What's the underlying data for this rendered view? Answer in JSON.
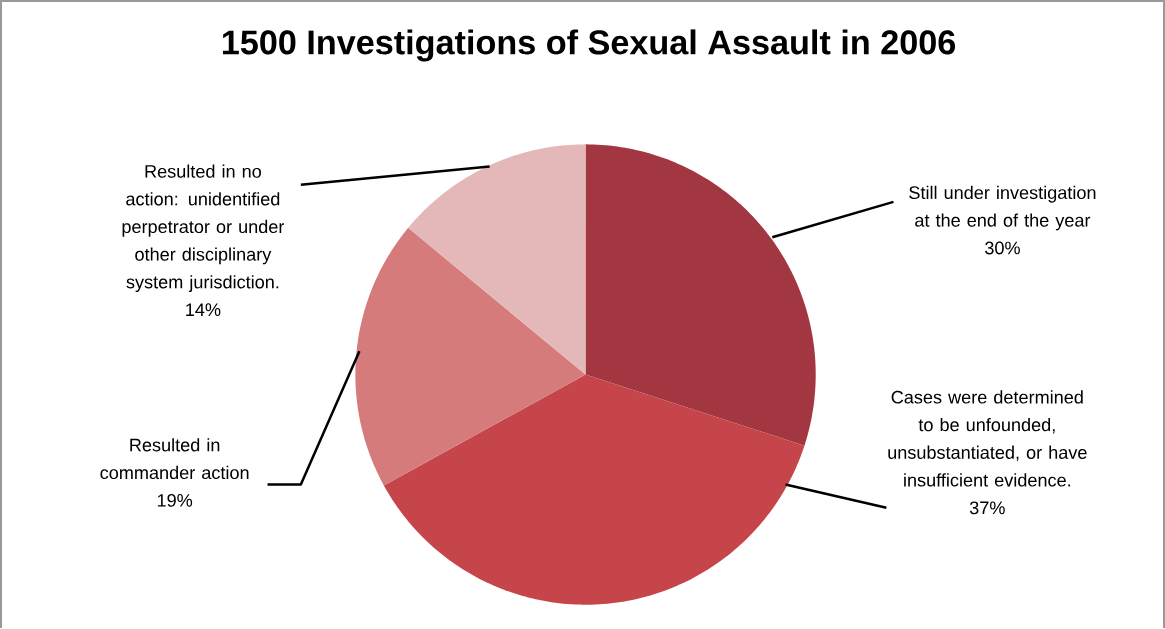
{
  "chart_data": {
    "type": "pie",
    "title": "1500 Investigations of Sexual Assault in 2006",
    "categories": [
      "Still under investigation at the end of the year",
      "Cases were determined to be unfounded, unsubstantiated, or have insufficient evidence.",
      "Resulted in commander action",
      "Resulted in no action: unidentified perpetrator or under other disciplinary system jurisdiction."
    ],
    "values": [
      30,
      37,
      19,
      14
    ],
    "colors": [
      "#a33741",
      "#c6454a",
      "#d57b7c",
      "#e4b8b8"
    ],
    "value_labels": [
      "30%",
      "37%",
      "19%",
      "14%"
    ]
  }
}
